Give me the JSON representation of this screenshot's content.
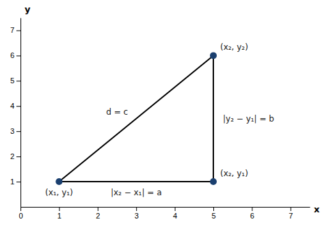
{
  "chart_data": {
    "type": "line",
    "x_label": "x",
    "y_label": "y",
    "xlim": [
      0,
      7.5
    ],
    "ylim": [
      0,
      7.5
    ],
    "xticks": [
      0,
      1,
      2,
      3,
      4,
      5,
      6,
      7
    ],
    "yticks": [
      1,
      2,
      3,
      4,
      5,
      6,
      7
    ],
    "grid": false,
    "series": [
      {
        "type": "line",
        "color": "black",
        "line_style": "solid",
        "x": [
          1,
          5,
          5,
          1
        ],
        "values": [
          1,
          1,
          6,
          1
        ]
      },
      {
        "type": "scatter",
        "color": "#1a3f6f",
        "marker": "circle",
        "x": [
          1,
          5,
          5
        ],
        "values": [
          1,
          6,
          1
        ]
      }
    ],
    "annotations": [
      {
        "text": "(x₁, y₁)",
        "x": 1,
        "y": 1
      },
      {
        "text": "(x₂, y₂)",
        "x": 5,
        "y": 6
      },
      {
        "text": "(x₂, y₁)",
        "x": 5,
        "y": 1
      },
      {
        "text": "d = c",
        "x": 3,
        "y": 3.5
      },
      {
        "text": "|x₂ − x₁| = a",
        "x": 3,
        "y": 1
      },
      {
        "text": "|y₂ − y₁| = b",
        "x": 5,
        "y": 3.5
      }
    ]
  }
}
